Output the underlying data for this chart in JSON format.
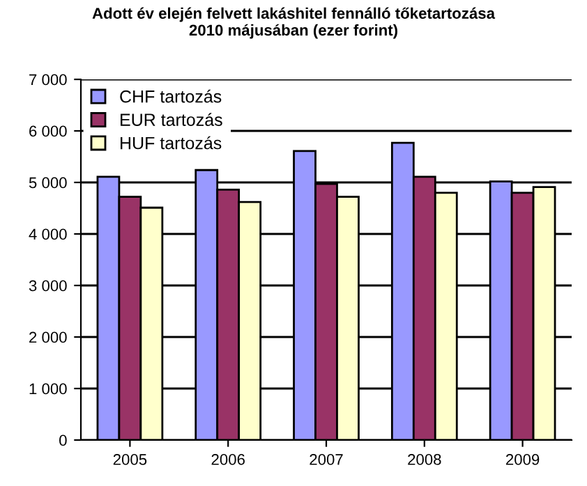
{
  "chart_data": {
    "type": "bar",
    "title": "Adott év elején felvett lakáshitel fennálló tőketartozása\n2010 májusában (ezer forint)",
    "categories": [
      "2005",
      "2006",
      "2007",
      "2008",
      "2009"
    ],
    "series": [
      {
        "name": "CHF tartozás",
        "color": "#9999ff",
        "values": [
          5110,
          5240,
          5610,
          5770,
          5020
        ]
      },
      {
        "name": "EUR tartozás",
        "color": "#993366",
        "values": [
          4720,
          4860,
          4970,
          5110,
          4800
        ]
      },
      {
        "name": "HUF tartozás",
        "color": "#ffffcc",
        "values": [
          4510,
          4620,
          4720,
          4800,
          4910
        ]
      }
    ],
    "ylim": [
      0,
      7000
    ],
    "yticks": [
      {
        "value": 0,
        "label": "0"
      },
      {
        "value": 1000,
        "label": "1 000"
      },
      {
        "value": 2000,
        "label": "2 000"
      },
      {
        "value": 3000,
        "label": "3 000"
      },
      {
        "value": 4000,
        "label": "4 000"
      },
      {
        "value": 5000,
        "label": "5 000"
      },
      {
        "value": 6000,
        "label": "6 000"
      },
      {
        "value": 7000,
        "label": "7 000"
      }
    ],
    "grid": "y",
    "legend": "top left"
  }
}
